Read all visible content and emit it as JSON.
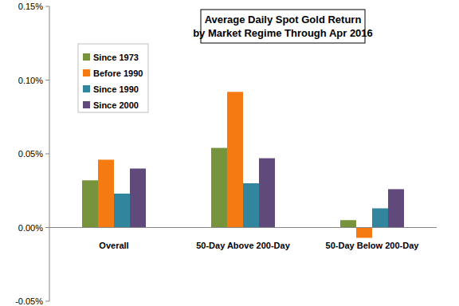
{
  "chart_data": {
    "type": "bar",
    "title": "Average Daily Spot Gold Return\nby Market Regime Through Apr 2016",
    "categories": [
      "Overall",
      "50-Day Above 200-Day",
      "50-Day Below 200-Day"
    ],
    "series": [
      {
        "name": "Since 1973",
        "color": "#77933c",
        "values": [
          0.032,
          0.054,
          0.005
        ]
      },
      {
        "name": "Before 1990",
        "color": "#f67a12",
        "values": [
          0.046,
          0.092,
          -0.007
        ]
      },
      {
        "name": "Since 1990",
        "color": "#31859c",
        "values": [
          0.023,
          0.03,
          0.013
        ]
      },
      {
        "name": "Since 2000",
        "color": "#604a7b",
        "values": [
          0.04,
          0.047,
          0.026
        ]
      }
    ],
    "ylim": [
      -0.05,
      0.15
    ],
    "yticks": [
      {
        "value": -0.05,
        "label": "-0.05%"
      },
      {
        "value": 0,
        "label": "0.00%"
      },
      {
        "value": 0.05,
        "label": "0.05%"
      },
      {
        "value": 0.1,
        "label": "0.10%"
      },
      {
        "value": 0.15,
        "label": "0.15%"
      }
    ],
    "grid": false,
    "legend": "top-left"
  }
}
